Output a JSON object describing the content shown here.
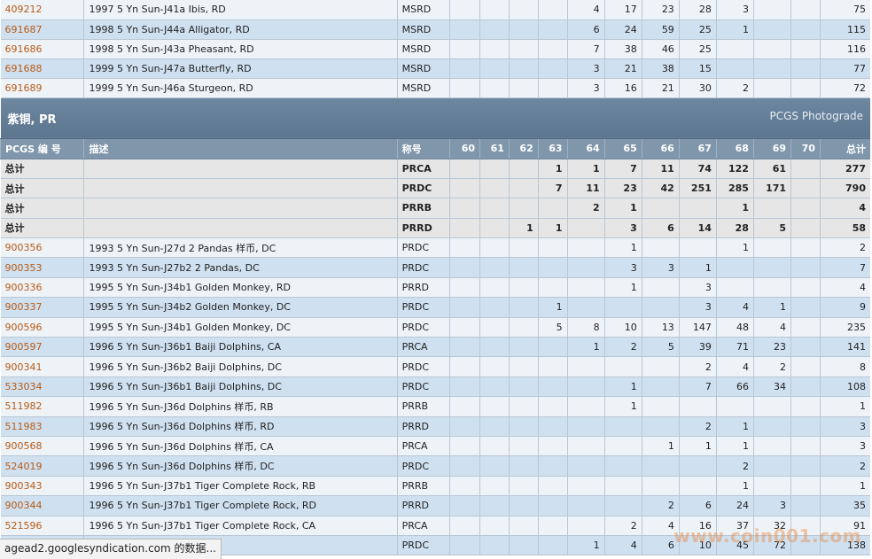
{
  "upper_rows": [
    {
      "code": "409212",
      "desc": "1997 5 Yn Sun-J41a Ibis, RD",
      "grade": "MSRD",
      "g": [
        "",
        "",
        "",
        "",
        "4",
        "17",
        "23",
        "28",
        "3",
        "",
        ""
      ],
      "total": "75"
    },
    {
      "code": "691687",
      "desc": "1998 5 Yn Sun-J44a Alligator, RD",
      "grade": "MSRD",
      "g": [
        "",
        "",
        "",
        "",
        "6",
        "24",
        "59",
        "25",
        "1",
        "",
        ""
      ],
      "total": "115"
    },
    {
      "code": "691686",
      "desc": "1998 5 Yn Sun-J43a Pheasant, RD",
      "grade": "MSRD",
      "g": [
        "",
        "",
        "",
        "",
        "7",
        "38",
        "46",
        "25",
        "",
        "",
        ""
      ],
      "total": "116"
    },
    {
      "code": "691688",
      "desc": "1999 5 Yn Sun-J47a Butterfly, RD",
      "grade": "MSRD",
      "g": [
        "",
        "",
        "",
        "",
        "3",
        "21",
        "38",
        "15",
        "",
        "",
        ""
      ],
      "total": "77"
    },
    {
      "code": "691689",
      "desc": "1999 5 Yn Sun-J46a Sturgeon, RD",
      "grade": "MSRD",
      "g": [
        "",
        "",
        "",
        "",
        "3",
        "16",
        "21",
        "30",
        "2",
        "",
        ""
      ],
      "total": "72"
    }
  ],
  "section": {
    "title": "紫铜, PR",
    "right": "PCGS Photograde"
  },
  "header": {
    "code": "PCGS 编 号",
    "desc": "描述",
    "grade": "称号",
    "grades": [
      "60",
      "61",
      "62",
      "63",
      "64",
      "65",
      "66",
      "67",
      "68",
      "69",
      "70"
    ],
    "total": "总计"
  },
  "totals": [
    {
      "label": "总计",
      "grade": "PRCA",
      "g": [
        "",
        "",
        "",
        "1",
        "1",
        "7",
        "11",
        "74",
        "122",
        "61",
        ""
      ],
      "total": "277"
    },
    {
      "label": "总计",
      "grade": "PRDC",
      "g": [
        "",
        "",
        "",
        "7",
        "11",
        "23",
        "42",
        "251",
        "285",
        "171",
        ""
      ],
      "total": "790"
    },
    {
      "label": "总计",
      "grade": "PRRB",
      "g": [
        "",
        "",
        "",
        "",
        "2",
        "1",
        "",
        "",
        "1",
        "",
        ""
      ],
      "total": "4"
    },
    {
      "label": "总计",
      "grade": "PRRD",
      "g": [
        "",
        "",
        "1",
        "1",
        "",
        "3",
        "6",
        "14",
        "28",
        "5",
        ""
      ],
      "total": "58"
    }
  ],
  "rows": [
    {
      "code": "900356",
      "desc": "1993 5 Yn Sun-J27d 2 Pandas 样币, DC",
      "grade": "PRDC",
      "g": [
        "",
        "",
        "",
        "",
        "",
        "1",
        "",
        "",
        "1",
        "",
        ""
      ],
      "total": "2"
    },
    {
      "code": "900353",
      "desc": "1993 5 Yn Sun-J27b2 2 Pandas, DC",
      "grade": "PRDC",
      "g": [
        "",
        "",
        "",
        "",
        "",
        "3",
        "3",
        "1",
        "",
        "",
        ""
      ],
      "total": "7"
    },
    {
      "code": "900336",
      "desc": "1995 5 Yn Sun-J34b1 Golden Monkey, RD",
      "grade": "PRRD",
      "g": [
        "",
        "",
        "",
        "",
        "",
        "1",
        "",
        "3",
        "",
        "",
        ""
      ],
      "total": "4"
    },
    {
      "code": "900337",
      "desc": "1995 5 Yn Sun-J34b2 Golden Monkey, DC",
      "grade": "PRDC",
      "g": [
        "",
        "",
        "",
        "1",
        "",
        "",
        "",
        "3",
        "4",
        "1",
        ""
      ],
      "total": "9"
    },
    {
      "code": "900596",
      "desc": "1995 5 Yn Sun-J34b1 Golden Monkey, DC",
      "grade": "PRDC",
      "g": [
        "",
        "",
        "",
        "5",
        "8",
        "10",
        "13",
        "147",
        "48",
        "4",
        ""
      ],
      "total": "235"
    },
    {
      "code": "900597",
      "desc": "1996 5 Yn Sun-J36b1 Baiji Dolphins, CA",
      "grade": "PRCA",
      "g": [
        "",
        "",
        "",
        "",
        "1",
        "2",
        "5",
        "39",
        "71",
        "23",
        ""
      ],
      "total": "141"
    },
    {
      "code": "900341",
      "desc": "1996 5 Yn Sun-J36b2 Baiji Dolphins, DC",
      "grade": "PRDC",
      "g": [
        "",
        "",
        "",
        "",
        "",
        "",
        "",
        "2",
        "4",
        "2",
        ""
      ],
      "total": "8"
    },
    {
      "code": "533034",
      "desc": "1996 5 Yn Sun-J36b1 Baiji Dolphins, DC",
      "grade": "PRDC",
      "g": [
        "",
        "",
        "",
        "",
        "",
        "1",
        "",
        "7",
        "66",
        "34",
        ""
      ],
      "total": "108"
    },
    {
      "code": "511982",
      "desc": "1996 5 Yn Sun-J36d Dolphins 样币, RB",
      "grade": "PRRB",
      "g": [
        "",
        "",
        "",
        "",
        "",
        "1",
        "",
        "",
        "",
        "",
        ""
      ],
      "total": "1"
    },
    {
      "code": "511983",
      "desc": "1996 5 Yn Sun-J36d Dolphins 样币, RD",
      "grade": "PRRD",
      "g": [
        "",
        "",
        "",
        "",
        "",
        "",
        "",
        "2",
        "1",
        "",
        ""
      ],
      "total": "3"
    },
    {
      "code": "900568",
      "desc": "1996 5 Yn Sun-J36d Dolphins 样币, CA",
      "grade": "PRCA",
      "g": [
        "",
        "",
        "",
        "",
        "",
        "",
        "1",
        "1",
        "1",
        "",
        ""
      ],
      "total": "3"
    },
    {
      "code": "524019",
      "desc": "1996 5 Yn Sun-J36d Dolphins 样币, DC",
      "grade": "PRDC",
      "g": [
        "",
        "",
        "",
        "",
        "",
        "",
        "",
        "",
        "2",
        "",
        ""
      ],
      "total": "2"
    },
    {
      "code": "900343",
      "desc": "1996 5 Yn Sun-J37b1 Tiger Complete Rock, RB",
      "grade": "PRRB",
      "g": [
        "",
        "",
        "",
        "",
        "",
        "",
        "",
        "",
        "1",
        "",
        ""
      ],
      "total": "1"
    },
    {
      "code": "900344",
      "desc": "1996 5 Yn Sun-J37b1 Tiger Complete Rock, RD",
      "grade": "PRRD",
      "g": [
        "",
        "",
        "",
        "",
        "",
        "",
        "2",
        "6",
        "24",
        "3",
        ""
      ],
      "total": "35"
    },
    {
      "code": "521596",
      "desc": "1996 5 Yn Sun-J37b1 Tiger Complete Rock, CA",
      "grade": "PRCA",
      "g": [
        "",
        "",
        "",
        "",
        "",
        "2",
        "4",
        "16",
        "37",
        "32",
        ""
      ],
      "total": "91"
    },
    {
      "code": "",
      "desc": "Complete Rock, DC",
      "grade": "PRDC",
      "g": [
        "",
        "",
        "",
        "",
        "1",
        "4",
        "6",
        "10",
        "45",
        "72",
        ""
      ],
      "total": "138"
    }
  ],
  "status_bar": "agead2.googlesyndication.com 的数据...",
  "watermark": "www.coin001.com"
}
